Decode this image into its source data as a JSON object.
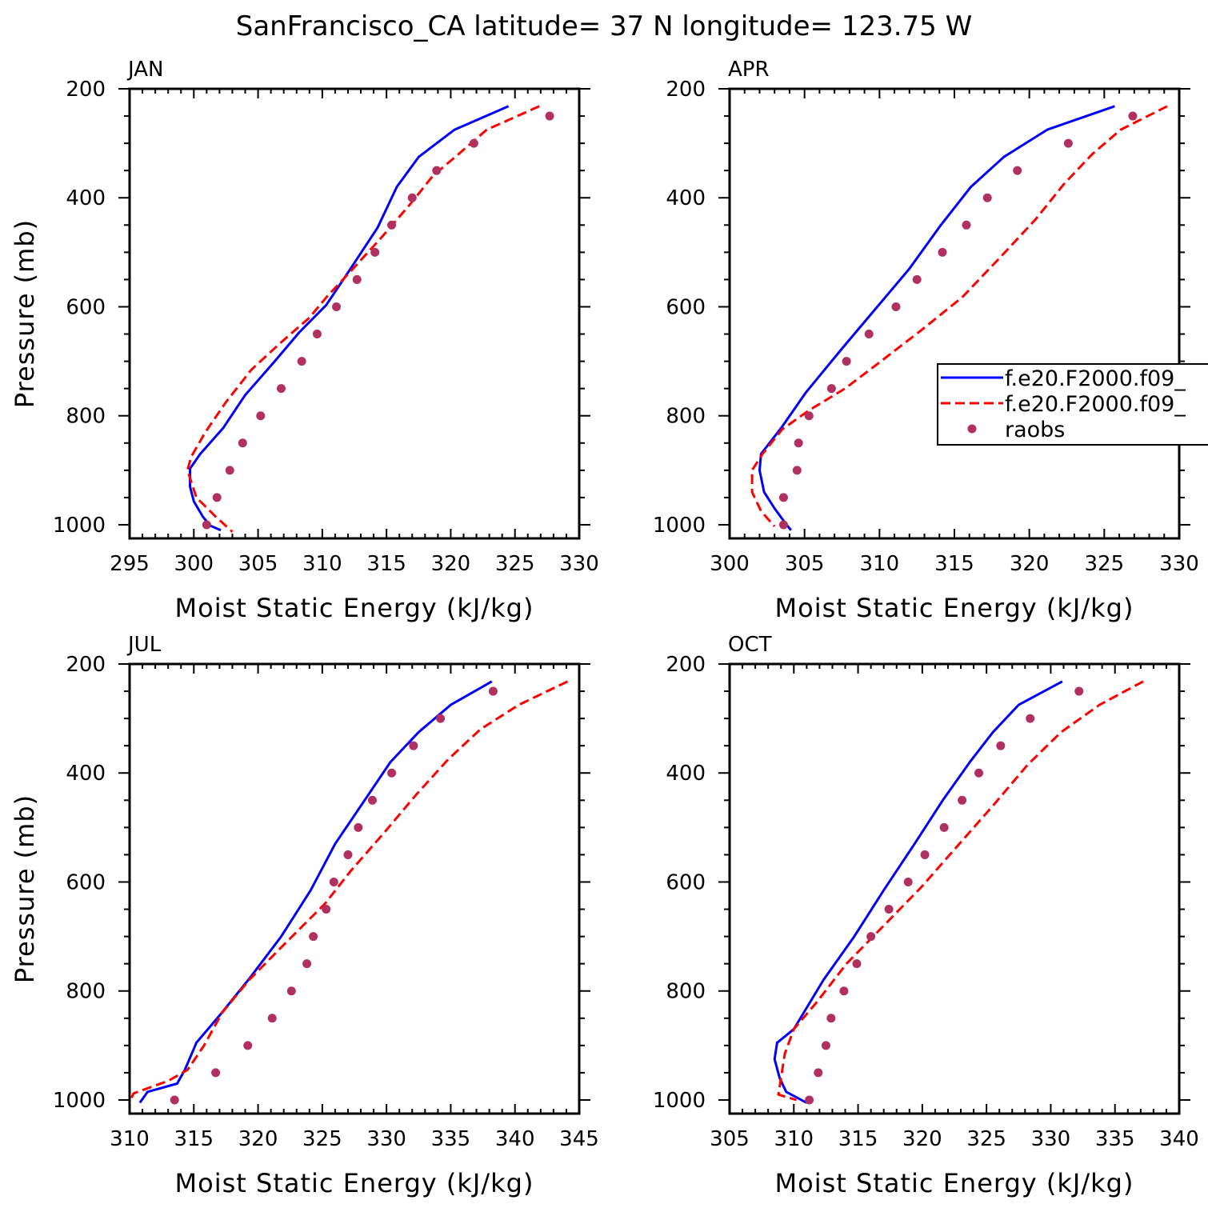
{
  "title": "SanFrancisco_CA  latitude= 37 N longitude= 123.75 W",
  "colors": {
    "model1": "#0000ff",
    "model2": "#ff0000",
    "raobs": "#b03060",
    "axis": "#000000"
  },
  "legend": {
    "placement": "right-middle of APR panel",
    "entries": [
      {
        "label": "f.e20.F2000.f09_",
        "style": "solid",
        "color": "#0000ff"
      },
      {
        "label": "f.e20.F2000.f09_",
        "style": "dashed",
        "color": "#ff0000"
      },
      {
        "label": "raobs",
        "style": "marker",
        "color": "#b03060"
      }
    ]
  },
  "chart_data": [
    {
      "type": "line",
      "panel": "JAN",
      "xlabel": "Moist Static Energy (kJ/kg)",
      "ylabel": "Pressure (mb)",
      "xlim": [
        295,
        330
      ],
      "ylim": [
        1025,
        200
      ],
      "xticks": [
        295,
        300,
        305,
        310,
        315,
        320,
        325,
        330
      ],
      "yticks": [
        200,
        400,
        600,
        800,
        1000
      ],
      "y_reversed": true,
      "grid": false,
      "series": [
        {
          "name": "f.e20.F2000.f09_",
          "style": "solid",
          "color": "#0000ff",
          "points": [
            [
              324.5,
              232
            ],
            [
              320.3,
              275
            ],
            [
              317.5,
              325
            ],
            [
              315.8,
              380
            ],
            [
              314.3,
              455
            ],
            [
              312.2,
              530
            ],
            [
              310.3,
              597
            ],
            [
              308.2,
              647
            ],
            [
              306.3,
              700
            ],
            [
              304.0,
              762
            ],
            [
              302.3,
              822
            ],
            [
              300.5,
              870
            ],
            [
              299.7,
              897
            ],
            [
              299.7,
              930
            ],
            [
              300.0,
              957
            ],
            [
              300.7,
              985
            ],
            [
              301.3,
              1002
            ],
            [
              302.1,
              1010
            ]
          ]
        },
        {
          "name": "f.e20.F2000.f09_",
          "style": "dashed",
          "color": "#ff0000",
          "points": [
            [
              326.9,
              232
            ],
            [
              322.8,
              275
            ],
            [
              320.6,
              320
            ],
            [
              318.6,
              360
            ],
            [
              316.9,
              410
            ],
            [
              314.6,
              473
            ],
            [
              312.4,
              530
            ],
            [
              310.3,
              583
            ],
            [
              309.0,
              620
            ],
            [
              306.8,
              665
            ],
            [
              304.5,
              715
            ],
            [
              302.5,
              775
            ],
            [
              300.9,
              830
            ],
            [
              299.8,
              875
            ],
            [
              299.5,
              900
            ],
            [
              300.2,
              950
            ],
            [
              301.7,
              985
            ],
            [
              303.0,
              1013
            ]
          ]
        },
        {
          "name": "raobs",
          "style": "marker",
          "color": "#b03060",
          "points": [
            [
              327.7,
              250
            ],
            [
              321.8,
              300
            ],
            [
              318.9,
              350
            ],
            [
              317.0,
              400
            ],
            [
              315.4,
              450
            ],
            [
              314.1,
              500
            ],
            [
              312.7,
              550
            ],
            [
              311.1,
              600
            ],
            [
              309.6,
              650
            ],
            [
              308.4,
              700
            ],
            [
              306.8,
              750
            ],
            [
              305.2,
              800
            ],
            [
              303.8,
              850
            ],
            [
              302.8,
              900
            ],
            [
              301.8,
              950
            ],
            [
              301.0,
              1000
            ]
          ]
        }
      ]
    },
    {
      "type": "line",
      "panel": "APR",
      "xlabel": "Moist Static Energy (kJ/kg)",
      "ylabel": "",
      "xlim": [
        300,
        330
      ],
      "ylim": [
        1025,
        200
      ],
      "xticks": [
        300,
        305,
        310,
        315,
        320,
        325,
        330
      ],
      "yticks": [
        200,
        400,
        600,
        800,
        1000
      ],
      "y_reversed": true,
      "grid": false,
      "series": [
        {
          "name": "f.e20.F2000.f09_",
          "style": "solid",
          "color": "#0000ff",
          "points": [
            [
              325.7,
              232
            ],
            [
              321.2,
              275
            ],
            [
              318.3,
              325
            ],
            [
              316.1,
              380
            ],
            [
              314.1,
              450
            ],
            [
              312.0,
              530
            ],
            [
              309.7,
              605
            ],
            [
              307.4,
              680
            ],
            [
              305.1,
              757
            ],
            [
              303.5,
              820
            ],
            [
              302.1,
              870
            ],
            [
              302.0,
              900
            ],
            [
              302.3,
              940
            ],
            [
              303.0,
              970
            ],
            [
              303.8,
              1000
            ],
            [
              304.1,
              1010
            ]
          ]
        },
        {
          "name": "f.e20.F2000.f09_",
          "style": "dashed",
          "color": "#ff0000",
          "points": [
            [
              329.2,
              232
            ],
            [
              326.1,
              275
            ],
            [
              324.2,
              320
            ],
            [
              322.3,
              375
            ],
            [
              320.4,
              440
            ],
            [
              318.1,
              508
            ],
            [
              315.5,
              583
            ],
            [
              312.7,
              645
            ],
            [
              310.1,
              700
            ],
            [
              307.7,
              750
            ],
            [
              305.3,
              790
            ],
            [
              303.5,
              825
            ],
            [
              302.2,
              870
            ],
            [
              301.5,
              900
            ],
            [
              301.5,
              940
            ],
            [
              302.1,
              975
            ],
            [
              303.0,
              1003
            ]
          ]
        },
        {
          "name": "raobs",
          "style": "marker",
          "color": "#b03060",
          "points": [
            [
              326.9,
              250
            ],
            [
              322.6,
              300
            ],
            [
              319.2,
              350
            ],
            [
              317.2,
              400
            ],
            [
              315.8,
              450
            ],
            [
              314.2,
              500
            ],
            [
              312.5,
              550
            ],
            [
              311.1,
              600
            ],
            [
              309.3,
              650
            ],
            [
              307.8,
              700
            ],
            [
              306.8,
              750
            ],
            [
              305.3,
              800
            ],
            [
              304.6,
              850
            ],
            [
              304.5,
              900
            ],
            [
              303.6,
              950
            ],
            [
              303.6,
              1000
            ]
          ]
        }
      ]
    },
    {
      "type": "line",
      "panel": "JUL",
      "xlabel": "Moist Static Energy (kJ/kg)",
      "ylabel": "Pressure (mb)",
      "xlim": [
        310,
        345
      ],
      "ylim": [
        1025,
        200
      ],
      "xticks": [
        310,
        315,
        320,
        325,
        330,
        335,
        340,
        345
      ],
      "yticks": [
        200,
        400,
        600,
        800,
        1000
      ],
      "y_reversed": true,
      "grid": false,
      "series": [
        {
          "name": "f.e20.F2000.f09_",
          "style": "solid",
          "color": "#0000ff",
          "points": [
            [
              338.2,
              232
            ],
            [
              335.0,
              275
            ],
            [
              332.5,
              325
            ],
            [
              330.3,
              380
            ],
            [
              328.3,
              450
            ],
            [
              326.0,
              530
            ],
            [
              324.1,
              615
            ],
            [
              321.8,
              700
            ],
            [
              319.4,
              775
            ],
            [
              317.0,
              845
            ],
            [
              315.2,
              895
            ],
            [
              314.3,
              945
            ],
            [
              313.7,
              970
            ],
            [
              311.4,
              985
            ],
            [
              310.8,
              1005
            ]
          ]
        },
        {
          "name": "f.e20.F2000.f09_",
          "style": "dashed",
          "color": "#ff0000",
          "points": [
            [
              344.1,
              232
            ],
            [
              340.3,
              275
            ],
            [
              337.3,
              320
            ],
            [
              334.8,
              375
            ],
            [
              332.3,
              440
            ],
            [
              329.8,
              510
            ],
            [
              327.2,
              580
            ],
            [
              325.2,
              640
            ],
            [
              321.8,
              720
            ],
            [
              319.3,
              780
            ],
            [
              317.2,
              840
            ],
            [
              315.8,
              900
            ],
            [
              314.5,
              945
            ],
            [
              313.0,
              965
            ],
            [
              310.3,
              988
            ],
            [
              310.0,
              1005
            ]
          ]
        },
        {
          "name": "raobs",
          "style": "marker",
          "color": "#b03060",
          "points": [
            [
              338.3,
              250
            ],
            [
              334.2,
              300
            ],
            [
              332.1,
              350
            ],
            [
              330.4,
              400
            ],
            [
              328.9,
              450
            ],
            [
              327.8,
              500
            ],
            [
              327.0,
              550
            ],
            [
              325.9,
              600
            ],
            [
              325.3,
              650
            ],
            [
              324.3,
              700
            ],
            [
              323.8,
              750
            ],
            [
              322.6,
              800
            ],
            [
              321.1,
              850
            ],
            [
              319.2,
              900
            ],
            [
              316.7,
              950
            ],
            [
              313.5,
              1000
            ]
          ]
        }
      ]
    },
    {
      "type": "line",
      "panel": "OCT",
      "xlabel": "Moist Static Energy (kJ/kg)",
      "ylabel": "",
      "xlim": [
        305,
        340
      ],
      "ylim": [
        1025,
        200
      ],
      "xticks": [
        305,
        310,
        315,
        320,
        325,
        330,
        335,
        340
      ],
      "yticks": [
        200,
        400,
        600,
        800,
        1000
      ],
      "y_reversed": true,
      "grid": false,
      "series": [
        {
          "name": "f.e20.F2000.f09_",
          "style": "solid",
          "color": "#0000ff",
          "points": [
            [
              330.9,
              232
            ],
            [
              327.5,
              275
            ],
            [
              325.5,
              325
            ],
            [
              323.7,
              380
            ],
            [
              321.6,
              450
            ],
            [
              319.4,
              530
            ],
            [
              317.0,
              615
            ],
            [
              314.7,
              700
            ],
            [
              312.3,
              780
            ],
            [
              310.0,
              870
            ],
            [
              308.7,
              895
            ],
            [
              308.5,
              925
            ],
            [
              308.9,
              960
            ],
            [
              309.4,
              985
            ],
            [
              311.0,
              1005
            ]
          ]
        },
        {
          "name": "f.e20.F2000.f09_",
          "style": "dashed",
          "color": "#ff0000",
          "points": [
            [
              337.2,
              232
            ],
            [
              333.8,
              275
            ],
            [
              330.8,
              325
            ],
            [
              328.2,
              385
            ],
            [
              325.5,
              460
            ],
            [
              322.7,
              535
            ],
            [
              319.9,
              610
            ],
            [
              317.0,
              680
            ],
            [
              314.1,
              750
            ],
            [
              311.8,
              820
            ],
            [
              310.0,
              870
            ],
            [
              309.3,
              915
            ],
            [
              309.0,
              960
            ],
            [
              308.8,
              990
            ],
            [
              310.2,
              1000
            ]
          ]
        },
        {
          "name": "raobs",
          "style": "marker",
          "color": "#b03060",
          "points": [
            [
              332.2,
              250
            ],
            [
              328.4,
              300
            ],
            [
              326.1,
              350
            ],
            [
              324.4,
              400
            ],
            [
              323.1,
              450
            ],
            [
              321.7,
              500
            ],
            [
              320.2,
              550
            ],
            [
              318.9,
              600
            ],
            [
              317.4,
              650
            ],
            [
              316.0,
              700
            ],
            [
              314.9,
              750
            ],
            [
              313.9,
              800
            ],
            [
              312.9,
              850
            ],
            [
              312.5,
              900
            ],
            [
              311.9,
              950
            ],
            [
              311.2,
              1000
            ]
          ]
        }
      ]
    }
  ]
}
